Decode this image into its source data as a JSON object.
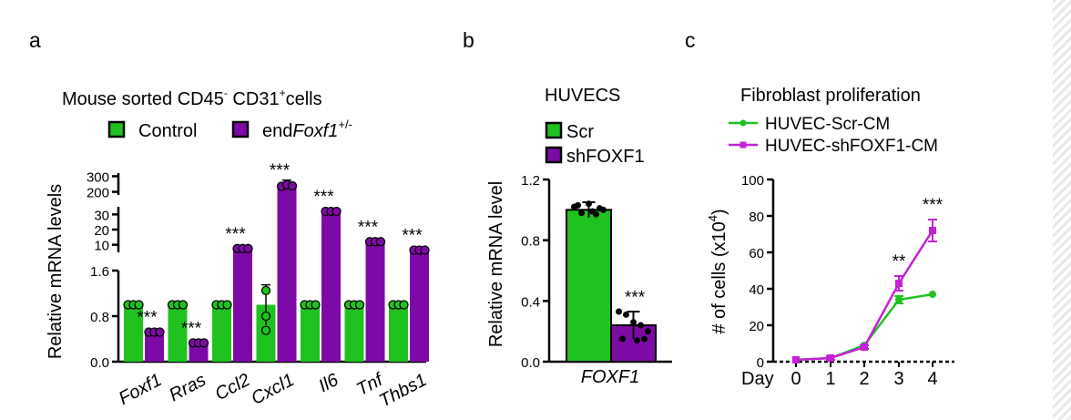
{
  "colors": {
    "control": "#1fc21f",
    "treated": "#7d0aa6",
    "purple_line": "#c421d6",
    "outline": "#000000"
  },
  "panels": {
    "a": {
      "letter": "a",
      "title_prefix": "Mouse sorted CD45",
      "title_sup1": "-",
      "title_mid": " CD31",
      "title_sup2": "+",
      "title_suffix": "cells",
      "legend_control": "Control",
      "legend_treated_prefix": "end",
      "legend_treated_gene": "Foxf1",
      "legend_treated_sup": "+/-"
    },
    "b": {
      "letter": "b"
    },
    "c": {
      "letter": "c"
    }
  },
  "chart_data": [
    {
      "type": "bar",
      "panel": "a",
      "ylabel": "Relative mRNA levels",
      "y_axis_segments": [
        {
          "ylim": [
            0,
            1.6
          ],
          "ticks": [
            "0.0",
            "0.8",
            "1.6"
          ]
        },
        {
          "ylim": [
            5,
            35
          ],
          "ticks": [
            "10",
            "20",
            "30"
          ]
        },
        {
          "ylim": [
            180,
            320
          ],
          "ticks": [
            "200",
            "300"
          ]
        }
      ],
      "categories": [
        "Foxf1",
        "Rras",
        "Ccl2",
        "Cxcl1",
        "Il6",
        "Tnf",
        "Thbs1"
      ],
      "series": [
        {
          "name": "Control",
          "values": [
            1.0,
            1.0,
            1.0,
            1.0,
            1.0,
            1.0,
            1.0
          ],
          "points": [
            [
              1,
              1,
              1
            ],
            [
              1,
              1,
              1
            ],
            [
              1,
              1,
              1
            ],
            [
              0.8,
              0.55,
              1.25
            ],
            [
              1,
              1,
              1
            ],
            [
              1,
              1,
              1
            ],
            [
              1,
              1,
              1
            ]
          ]
        },
        {
          "name": "endFoxf1+/-",
          "values": [
            0.52,
            0.33,
            7.5,
            240,
            32,
            12,
            6.5
          ],
          "points": [
            [
              0.52,
              0.52,
              0.52
            ],
            [
              0.33,
              0.33,
              0.33
            ],
            [
              7.5,
              7.5,
              7.5
            ],
            [
              235,
              245,
              238
            ],
            [
              32,
              32,
              32
            ],
            [
              12,
              12,
              12
            ],
            [
              6.5,
              6.5,
              6.5
            ]
          ]
        }
      ],
      "annotations": [
        "***",
        "***",
        "***",
        "***",
        "***",
        "***",
        "***"
      ]
    },
    {
      "type": "bar",
      "panel": "b",
      "title": "HUVECS",
      "ylabel": "Relative mRNA level",
      "ylim": [
        0,
        1.2
      ],
      "yticks": [
        "0.0",
        "0.4",
        "0.8",
        "1.2"
      ],
      "categories": [
        "FOXF1"
      ],
      "series": [
        {
          "name": "Scr",
          "values": [
            1.0
          ],
          "points": [
            1.02,
            0.98,
            1.04,
            0.97,
            1.0,
            1.03,
            0.99,
            1.01
          ],
          "error": 0.05
        },
        {
          "name": "shFOXF1",
          "values": [
            0.24
          ],
          "points": [
            0.33,
            0.31,
            0.26,
            0.24,
            0.2,
            0.15,
            0.14,
            0.15
          ],
          "error": 0.09
        }
      ],
      "annotation": "***"
    },
    {
      "type": "line",
      "panel": "c",
      "title": "Fibroblast proliferation",
      "ylabel": "# of cells (x10",
      "ylabel_sup": "4",
      "ylabel_close": ")",
      "xlabel": "Day",
      "x": [
        0,
        1,
        2,
        3,
        4
      ],
      "ylim": [
        0,
        100
      ],
      "yticks": [
        "0",
        "20",
        "40",
        "60",
        "80",
        "100"
      ],
      "series": [
        {
          "name": "HUVEC-Scr-CM",
          "values": [
            1,
            2,
            9,
            34,
            37
          ],
          "errors": [
            0,
            0,
            0,
            2,
            0
          ]
        },
        {
          "name": "HUVEC-shFOXF1-CM",
          "values": [
            1,
            2,
            8,
            43,
            72
          ],
          "errors": [
            0,
            1,
            1,
            4,
            6
          ]
        }
      ],
      "annotations": [
        {
          "x": 3,
          "text": "**"
        },
        {
          "x": 4,
          "text": "***"
        }
      ]
    }
  ]
}
